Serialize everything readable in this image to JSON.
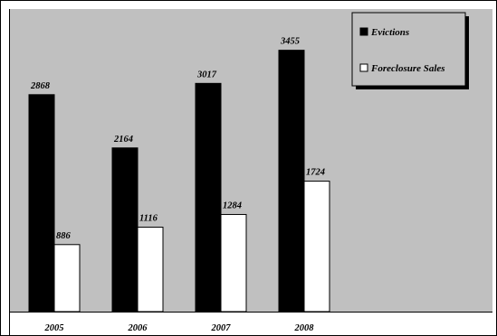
{
  "chart_data": {
    "type": "bar",
    "categories": [
      "2005",
      "2006",
      "2007",
      "2008"
    ],
    "series": [
      {
        "name": "Evictions",
        "values": [
          2868,
          2164,
          3017,
          3455
        ],
        "color": "#000000"
      },
      {
        "name": "Foreclosure Sales",
        "values": [
          886,
          1116,
          1284,
          1724
        ],
        "color": "#ffffff"
      }
    ],
    "ylim": [
      0,
      4000
    ],
    "grid": false,
    "legend_position": "top-right",
    "background": "#c0c0c0"
  }
}
